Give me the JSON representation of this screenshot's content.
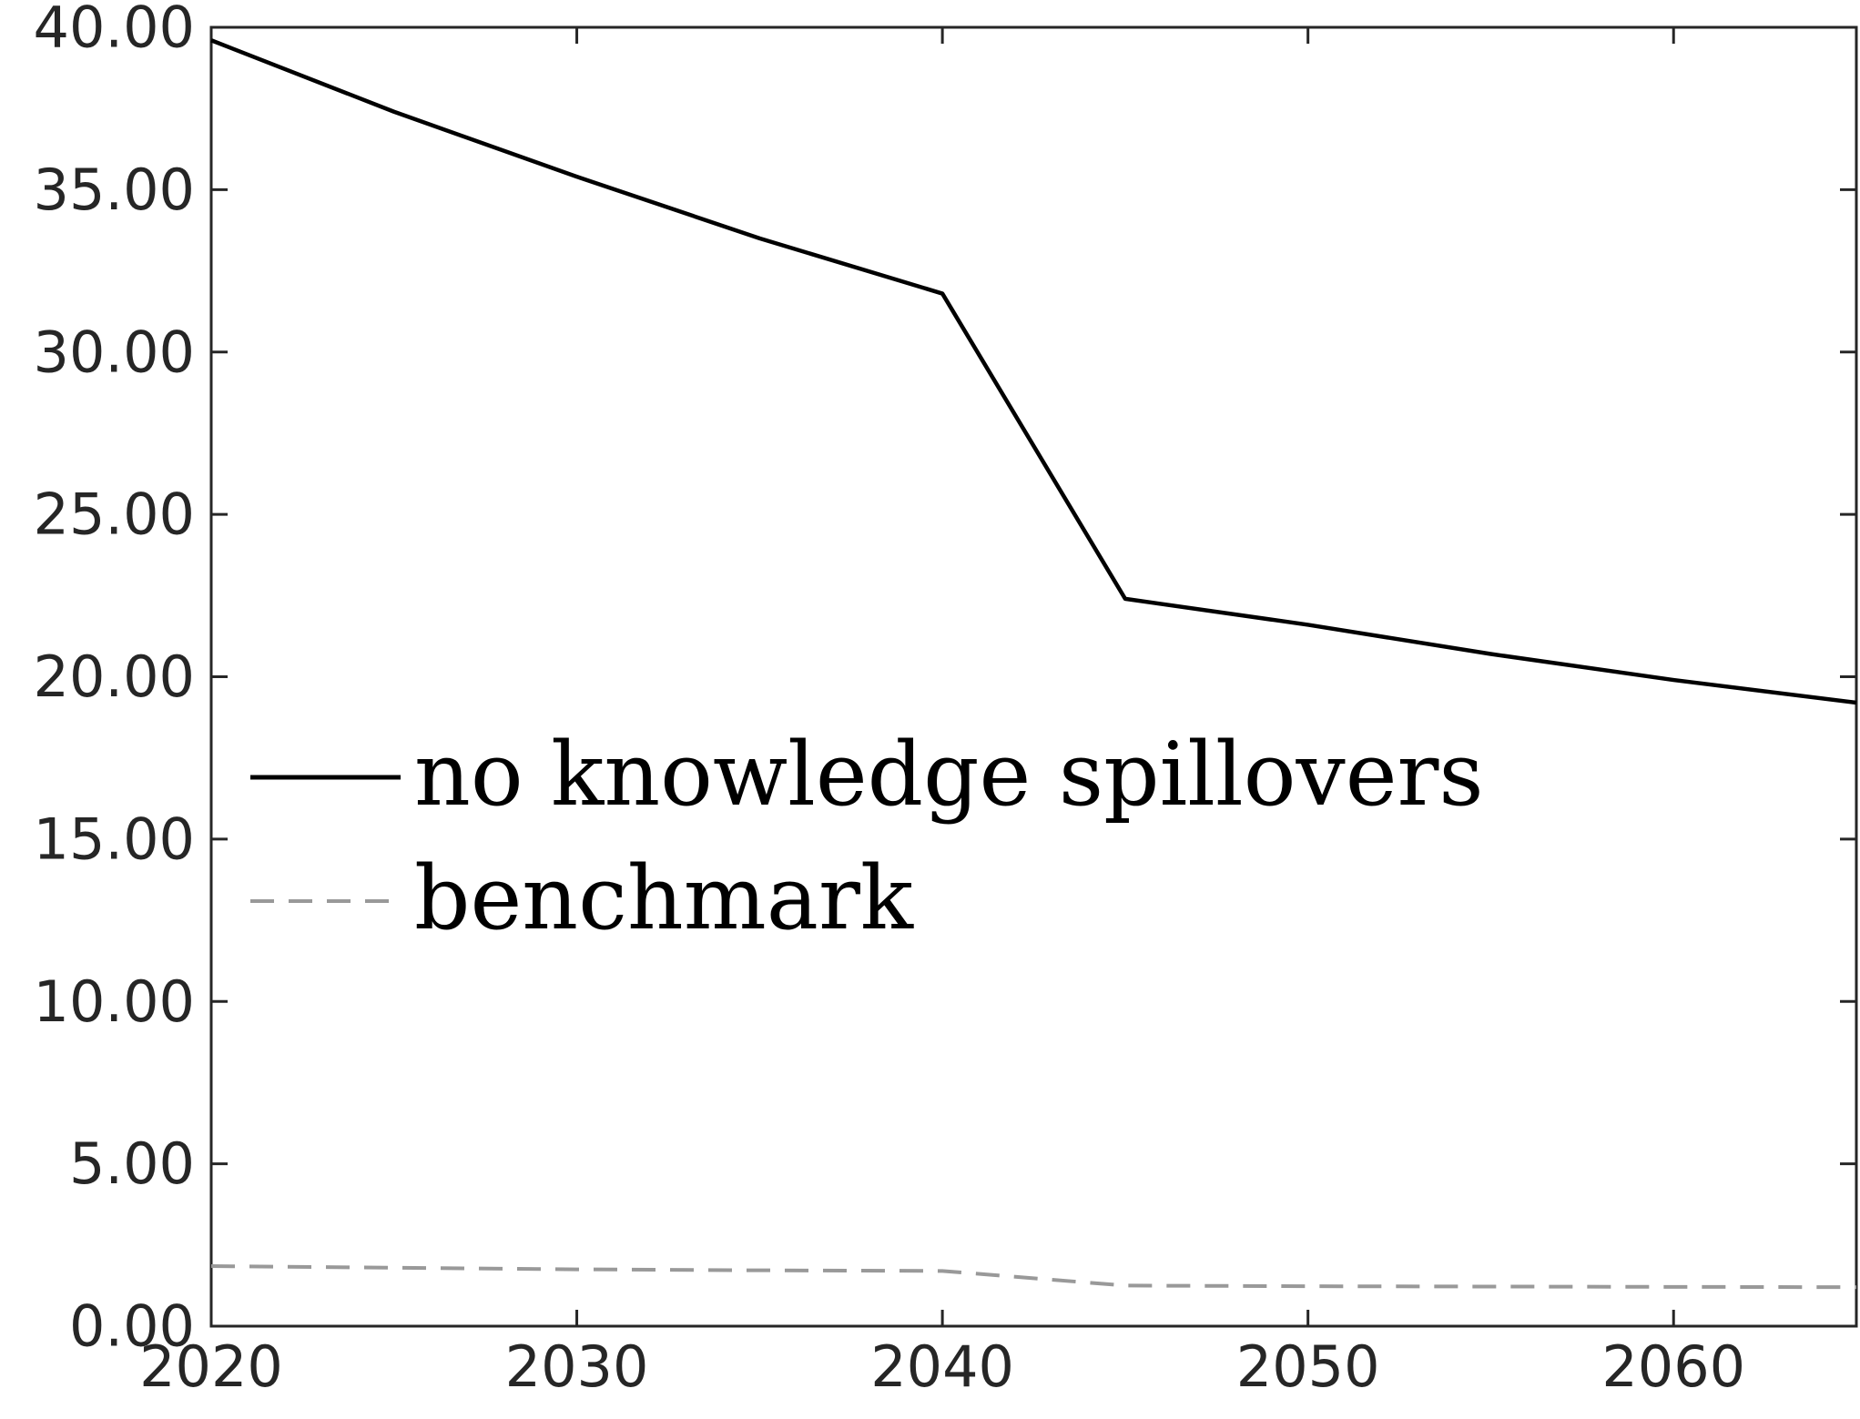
{
  "chart_data": {
    "type": "line",
    "title": "",
    "xlabel": "",
    "ylabel": "",
    "x": [
      2020,
      2025,
      2030,
      2035,
      2040,
      2045,
      2050,
      2055,
      2060,
      2065
    ],
    "xlim": [
      2020,
      2065
    ],
    "ylim": [
      0,
      40
    ],
    "x_ticks": [
      2020,
      2030,
      2040,
      2050,
      2060
    ],
    "x_tick_labels": [
      "2020",
      "2030",
      "2040",
      "2050",
      "2060"
    ],
    "y_ticks": [
      0,
      5,
      10,
      15,
      20,
      25,
      30,
      35,
      40
    ],
    "y_tick_labels": [
      "0.00",
      "5.00",
      "10.00",
      "15.00",
      "20.00",
      "25.00",
      "30.00",
      "35.00",
      "40.00"
    ],
    "grid": false,
    "legend_position": "center-left",
    "series": [
      {
        "name": "no knowledge spillovers",
        "color": "#000000",
        "style": "solid",
        "values": [
          39.6,
          37.4,
          35.4,
          33.5,
          31.8,
          22.4,
          21.6,
          20.7,
          19.9,
          19.2
        ]
      },
      {
        "name": "benchmark",
        "color": "#999999",
        "style": "dashed",
        "values": [
          1.85,
          1.8,
          1.75,
          1.72,
          1.7,
          1.25,
          1.23,
          1.22,
          1.21,
          1.2
        ]
      }
    ]
  }
}
